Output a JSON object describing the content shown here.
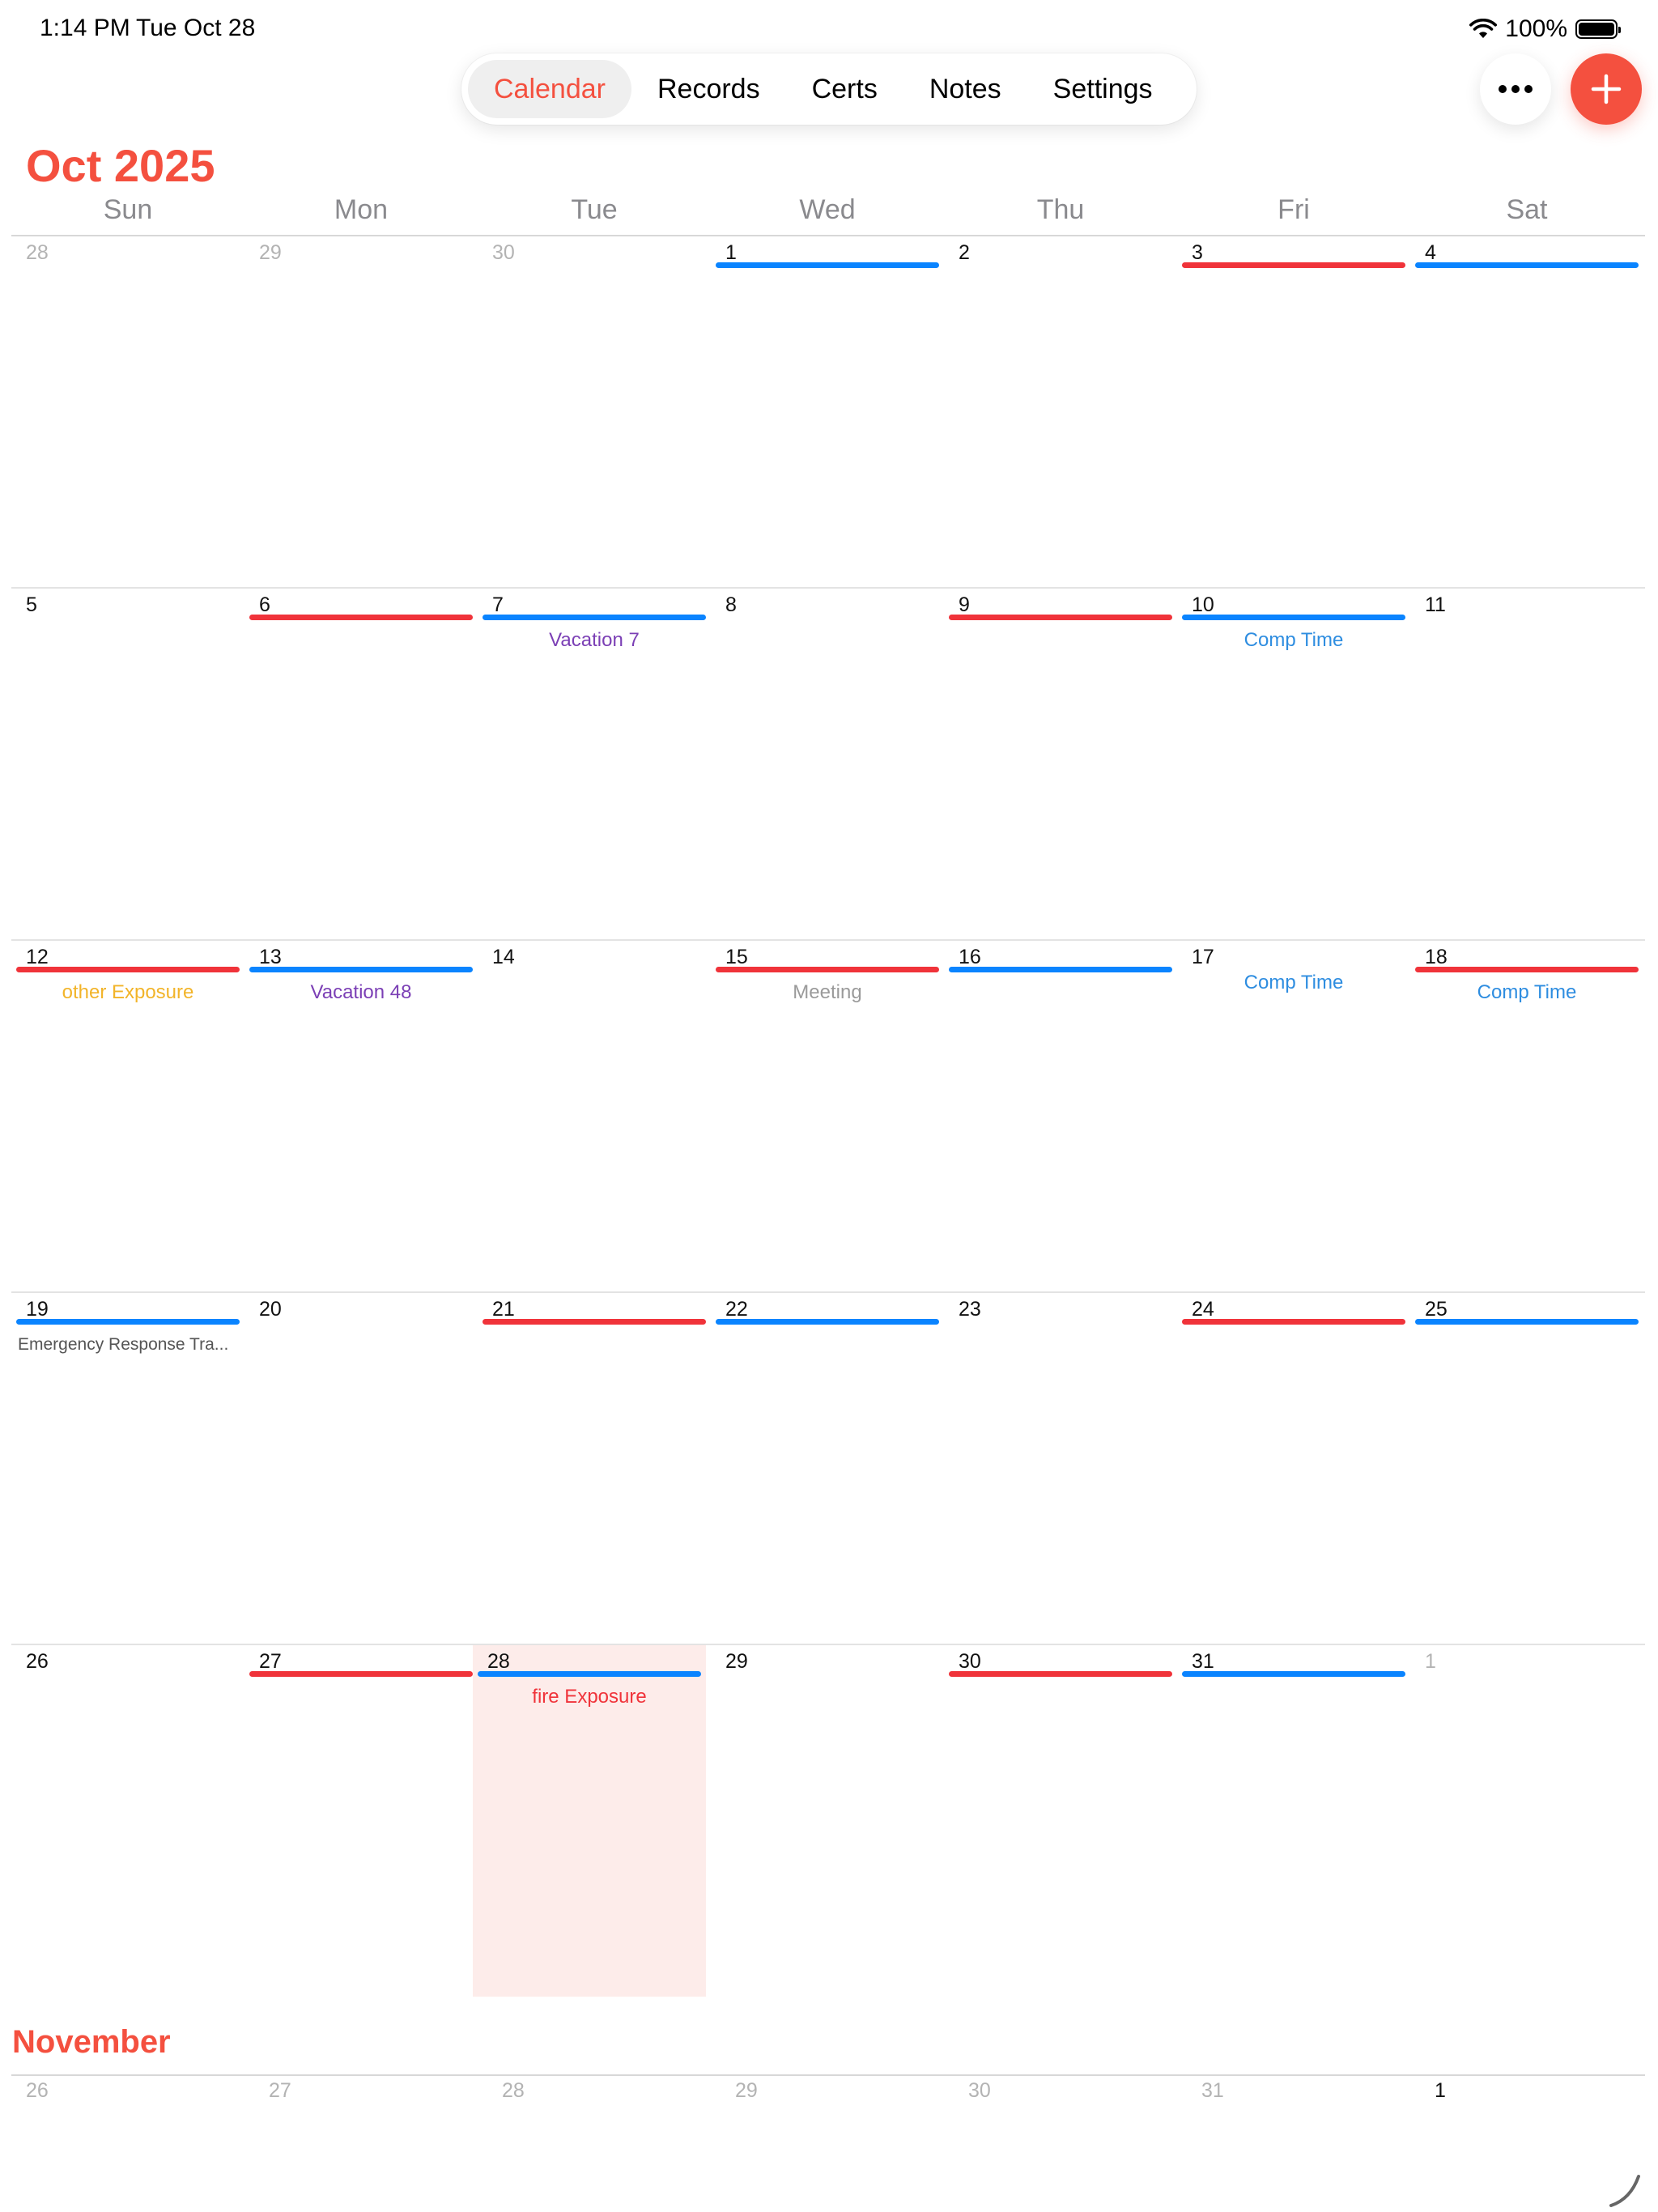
{
  "status_bar": {
    "time": "1:14 PM",
    "date": "Tue Oct 28",
    "battery_percent": "100%"
  },
  "nav": {
    "tabs": [
      {
        "label": "Calendar",
        "active": true
      },
      {
        "label": "Records",
        "active": false
      },
      {
        "label": "Certs",
        "active": false
      },
      {
        "label": "Notes",
        "active": false
      },
      {
        "label": "Settings",
        "active": false
      }
    ],
    "more_icon": "ellipsis-icon",
    "add_icon": "plus-icon"
  },
  "calendar": {
    "month_title": "Oct 2025",
    "weekdays": [
      "Sun",
      "Mon",
      "Tue",
      "Wed",
      "Thu",
      "Fri",
      "Sat"
    ],
    "weeks": [
      [
        {
          "num": "28",
          "dim": true
        },
        {
          "num": "29",
          "dim": true
        },
        {
          "num": "30",
          "dim": true
        },
        {
          "num": "1",
          "bar": "blue"
        },
        {
          "num": "2"
        },
        {
          "num": "3",
          "bar": "red"
        },
        {
          "num": "4",
          "bar": "blue"
        }
      ],
      [
        {
          "num": "5"
        },
        {
          "num": "6",
          "bar": "red"
        },
        {
          "num": "7",
          "bar": "blue",
          "event": "Vacation 7",
          "event_color": "#7b3fb5"
        },
        {
          "num": "8"
        },
        {
          "num": "9",
          "bar": "red"
        },
        {
          "num": "10",
          "bar": "blue",
          "event": "Comp Time",
          "event_color": "#2e8de0"
        },
        {
          "num": "11"
        }
      ],
      [
        {
          "num": "12",
          "bar": "red",
          "event": "other Exposure",
          "event_color": "#f2b429"
        },
        {
          "num": "13",
          "bar": "blue",
          "event": "Vacation 48",
          "event_color": "#7b3fb5"
        },
        {
          "num": "14"
        },
        {
          "num": "15",
          "bar": "red",
          "event": "Meeting",
          "event_color": "#9a9a9a"
        },
        {
          "num": "16",
          "bar": "blue"
        },
        {
          "num": "17",
          "event": "Comp Time",
          "event_color": "#2e8de0"
        },
        {
          "num": "18",
          "bar": "red",
          "event": "Comp Time",
          "event_color": "#2e8de0"
        }
      ],
      [
        {
          "num": "19",
          "bar": "blue",
          "event": "Emergency Response Tra...",
          "event_color": "#555555",
          "event_align": "left"
        },
        {
          "num": "20"
        },
        {
          "num": "21",
          "bar": "red"
        },
        {
          "num": "22",
          "bar": "blue"
        },
        {
          "num": "23"
        },
        {
          "num": "24",
          "bar": "red"
        },
        {
          "num": "25",
          "bar": "blue"
        }
      ],
      [
        {
          "num": "26"
        },
        {
          "num": "27",
          "bar": "red"
        },
        {
          "num": "28",
          "bar": "blue",
          "event": "fire Exposure",
          "event_color": "#f0333a",
          "today": true
        },
        {
          "num": "29"
        },
        {
          "num": "30",
          "bar": "red"
        },
        {
          "num": "31",
          "bar": "blue"
        },
        {
          "num": "1",
          "dim": true
        }
      ]
    ],
    "colors": {
      "accent": "#f4503f",
      "bar_red": "#f0333a",
      "bar_blue": "#0a84ff",
      "today_bg": "#fdecea"
    }
  },
  "next_month": {
    "title": "November",
    "days": [
      {
        "num": "26",
        "dim": true
      },
      {
        "num": "27",
        "dim": true
      },
      {
        "num": "28",
        "dim": true
      },
      {
        "num": "29",
        "dim": true
      },
      {
        "num": "30",
        "dim": true
      },
      {
        "num": "31",
        "dim": true
      },
      {
        "num": "1",
        "dim": false
      }
    ]
  }
}
